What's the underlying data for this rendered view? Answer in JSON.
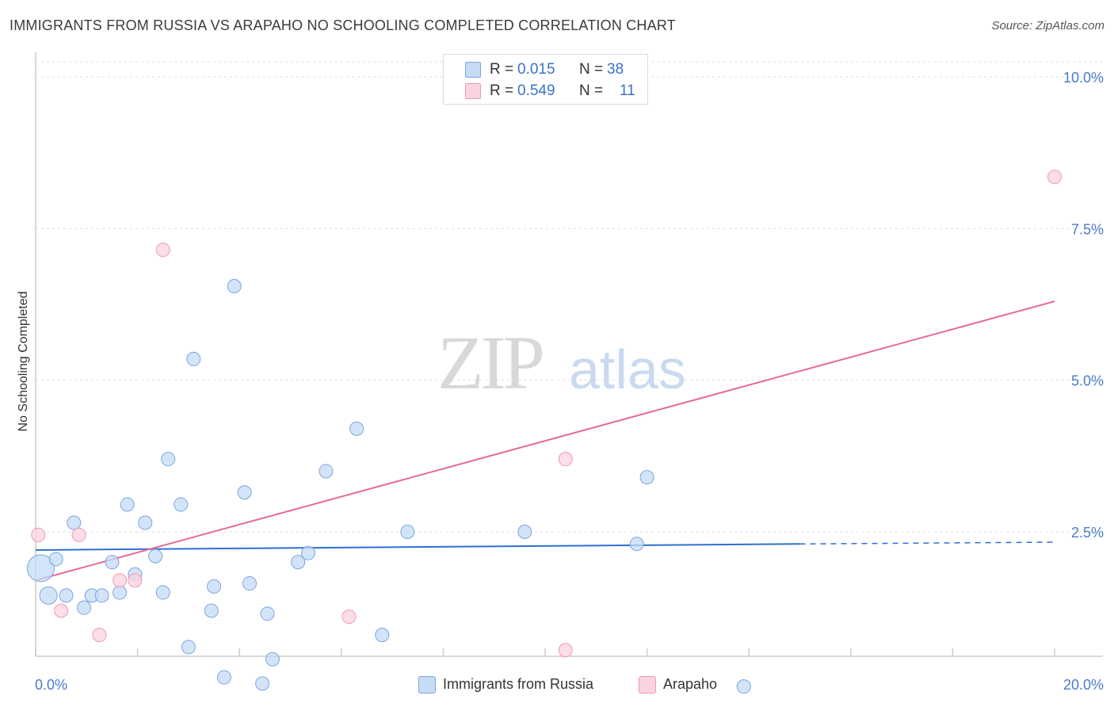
{
  "title": "IMMIGRANTS FROM RUSSIA VS ARAPAHO NO SCHOOLING COMPLETED CORRELATION CHART",
  "source": "Source: ZipAtlas.com",
  "watermark": {
    "zip": "ZIP",
    "atlas": "atlas"
  },
  "legend_top": [
    {
      "r_label": "R =",
      "r_value": "0.015",
      "n_label": "N =",
      "n_value": "38",
      "color": "#a8c8f0"
    },
    {
      "r_label": "R =",
      "r_value": "0.549",
      "n_label": "N =",
      "n_value": "11",
      "color": "#f8b8cc"
    }
  ],
  "legend_bottom": [
    {
      "label": "Immigrants from Russia",
      "color": "#a8c8f0"
    },
    {
      "label": "Arapaho",
      "color": "#f8b8cc"
    }
  ],
  "colors": {
    "russia_fill": "#c6dbf5",
    "russia_stroke": "#7aa6e0",
    "russia_line": "#2f6fd0",
    "arapaho_fill": "#fbd3df",
    "arapaho_stroke": "#ee9ab4",
    "arapaho_line": "#e56b96",
    "grid": "#dddddd",
    "tick_text": "#4a7cc9"
  },
  "chart_data": {
    "type": "scatter",
    "ylabel": "No Schooling Completed",
    "xlim": [
      0,
      20
    ],
    "ylim": [
      0,
      10.5
    ],
    "x_tick_labels": [
      {
        "value": 0,
        "label": "0.0%"
      },
      {
        "value": 20,
        "label": "20.0%"
      }
    ],
    "y_tick_labels": [
      {
        "value": 2.5,
        "label": "2.5%"
      },
      {
        "value": 5.0,
        "label": "5.0%"
      },
      {
        "value": 7.5,
        "label": "7.5%"
      },
      {
        "value": 10.0,
        "label": "10.0%"
      }
    ],
    "grid": true,
    "legend_position": "top-center",
    "series": [
      {
        "name": "Immigrants from Russia",
        "points": [
          [
            0.1,
            1.9
          ],
          [
            0.25,
            1.45
          ],
          [
            0.4,
            2.05
          ],
          [
            0.6,
            1.45
          ],
          [
            0.75,
            2.65
          ],
          [
            0.95,
            1.25
          ],
          [
            1.1,
            1.45
          ],
          [
            1.3,
            1.45
          ],
          [
            1.5,
            2.0
          ],
          [
            1.65,
            1.5
          ],
          [
            1.8,
            2.95
          ],
          [
            1.95,
            1.8
          ],
          [
            2.15,
            2.65
          ],
          [
            2.35,
            2.1
          ],
          [
            2.5,
            1.5
          ],
          [
            2.6,
            3.7
          ],
          [
            2.85,
            2.95
          ],
          [
            3.0,
            0.6
          ],
          [
            3.1,
            5.35
          ],
          [
            3.45,
            1.2
          ],
          [
            3.5,
            1.6
          ],
          [
            3.7,
            0.1
          ],
          [
            3.9,
            6.55
          ],
          [
            4.1,
            3.15
          ],
          [
            4.2,
            1.65
          ],
          [
            4.45,
            0.0
          ],
          [
            4.55,
            1.15
          ],
          [
            4.65,
            0.4
          ],
          [
            5.15,
            2.0
          ],
          [
            5.35,
            2.15
          ],
          [
            5.7,
            3.5
          ],
          [
            6.3,
            4.2
          ],
          [
            6.8,
            0.8
          ],
          [
            7.3,
            2.5
          ],
          [
            9.6,
            2.5
          ],
          [
            11.8,
            2.3
          ],
          [
            12.0,
            3.4
          ],
          [
            13.9,
            -0.05
          ]
        ],
        "sizes": {
          "[0.1, 1.9]": "large",
          "[0.25, 1.45]": "medium"
        },
        "trend": {
          "x": [
            0,
            15
          ],
          "y": [
            2.2,
            2.3
          ],
          "dashed_extension": {
            "x": [
              15,
              20
            ],
            "y": [
              2.3,
              2.33
            ]
          }
        }
      },
      {
        "name": "Arapaho",
        "points": [
          [
            0.05,
            2.45
          ],
          [
            0.5,
            1.2
          ],
          [
            0.85,
            2.45
          ],
          [
            1.25,
            0.8
          ],
          [
            1.65,
            1.7
          ],
          [
            1.95,
            1.7
          ],
          [
            2.5,
            7.15
          ],
          [
            6.15,
            1.1
          ],
          [
            10.4,
            3.7
          ],
          [
            10.4,
            0.55
          ],
          [
            20.0,
            8.35
          ]
        ],
        "trend": {
          "x": [
            0,
            20
          ],
          "y": [
            1.7,
            6.3
          ]
        }
      }
    ]
  }
}
